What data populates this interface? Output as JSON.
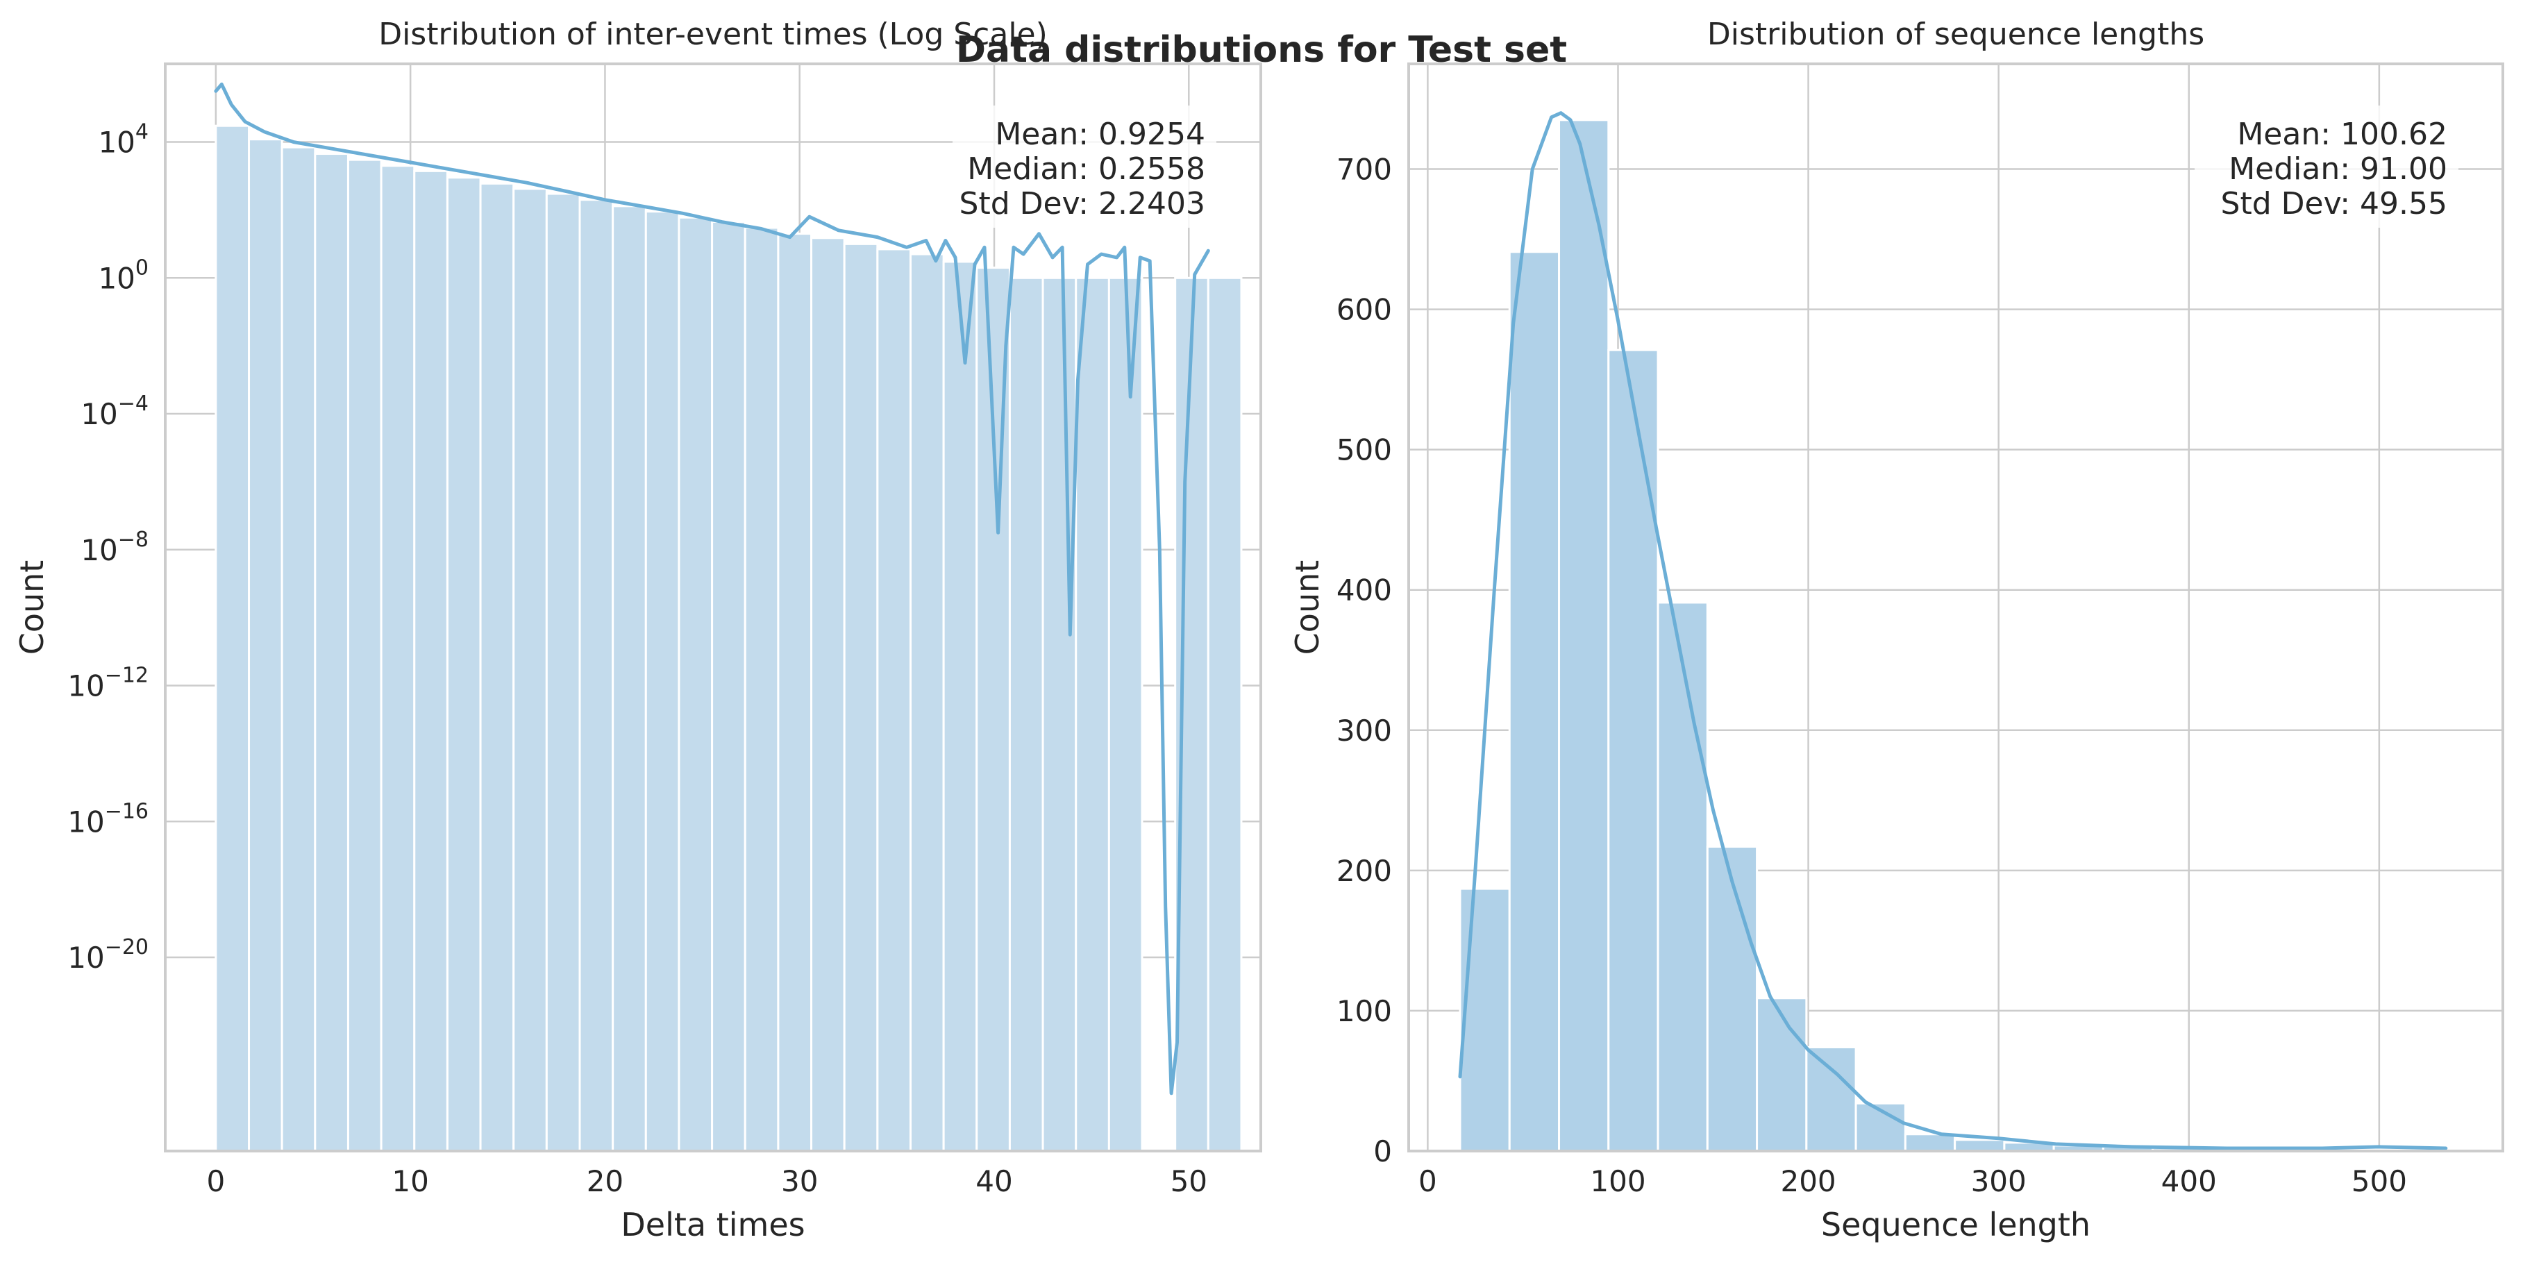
{
  "suptitle": "Data distributions for Test set",
  "colors": {
    "bar_left": "#c3dbec",
    "bar_right": "#b0d1e8",
    "kde": "#6baed6",
    "grid": "#cccccc",
    "axes_edge": "#cccccc",
    "background": "#ffffff"
  },
  "chart_data": [
    {
      "type": "bar",
      "title": "Distribution of inter-event times (Log Scale)",
      "xlabel": "Delta times",
      "ylabel": "Count",
      "yscale": "log",
      "xlim": [
        -2.6,
        53.7
      ],
      "ylim_log10": [
        -25.7,
        6.3
      ],
      "xticks": [
        0,
        10,
        20,
        30,
        40,
        50
      ],
      "xtick_labels": [
        "0",
        "10",
        "20",
        "30",
        "40",
        "50"
      ],
      "yticks_log10": [
        -20,
        -16,
        -12,
        -8,
        -4,
        0,
        4
      ],
      "ytick_labels": [
        {
          "base": "10",
          "exp": "−20"
        },
        {
          "base": "10",
          "exp": "−16"
        },
        {
          "base": "10",
          "exp": "−12"
        },
        {
          "base": "10",
          "exp": "−8"
        },
        {
          "base": "10",
          "exp": "−4"
        },
        {
          "base": "10",
          "exp": "0"
        },
        {
          "base": "10",
          "exp": "4"
        }
      ],
      "grid": true,
      "bins": {
        "start": 0,
        "width": 1.7,
        "counts": [
          30000,
          12000,
          7000,
          4500,
          3000,
          2000,
          1400,
          900,
          600,
          420,
          300,
          200,
          130,
          90,
          60,
          45,
          30,
          20,
          15,
          10,
          7,
          5,
          3,
          2,
          1,
          1,
          1,
          1,
          0,
          1,
          1
        ]
      },
      "kde": {
        "x": [
          0,
          0.3,
          0.8,
          1.5,
          2.5,
          4,
          6,
          8,
          10,
          12,
          14,
          16,
          18,
          20,
          22,
          24,
          26,
          28,
          29.5,
          30.5,
          32,
          34,
          35.5,
          36.5,
          37,
          37.5,
          38,
          38.5,
          39,
          39.5,
          40.2,
          40.6,
          41,
          41.5,
          42.3,
          43,
          43.5,
          43.9,
          44.3,
          44.8,
          45.5,
          46.3,
          46.7,
          47,
          47.5,
          48,
          48.5,
          48.8,
          49.1,
          49.4,
          49.8,
          50.3,
          51
        ],
        "y_log10": [
          5.5,
          5.7,
          5.1,
          4.6,
          4.3,
          4.0,
          3.8,
          3.6,
          3.4,
          3.2,
          3.0,
          2.8,
          2.55,
          2.3,
          2.1,
          1.9,
          1.65,
          1.45,
          1.2,
          1.8,
          1.4,
          1.2,
          0.9,
          1.1,
          0.5,
          1.1,
          0.6,
          -2.5,
          0.4,
          0.9,
          -7.5,
          -2.0,
          0.9,
          0.7,
          1.3,
          0.6,
          0.9,
          -10.5,
          -3.0,
          0.4,
          0.7,
          0.6,
          0.9,
          -3.5,
          0.6,
          0.5,
          -8.0,
          -18.5,
          -24.0,
          -22.5,
          -6.0,
          0.1,
          0.8
        ]
      },
      "annotation": [
        "Mean: 0.9254",
        "Median: 0.2558",
        "Std Dev: 2.2403"
      ]
    },
    {
      "type": "bar",
      "title": "Distribution of sequence lengths",
      "xlabel": "Sequence length",
      "ylabel": "Count",
      "xlim": [
        -10,
        565
      ],
      "ylim": [
        0,
        775
      ],
      "xticks": [
        0,
        100,
        200,
        300,
        400,
        500
      ],
      "xtick_labels": [
        "0",
        "100",
        "200",
        "300",
        "400",
        "500"
      ],
      "yticks": [
        0,
        100,
        200,
        300,
        400,
        500,
        600,
        700
      ],
      "ytick_labels": [
        "0",
        "100",
        "200",
        "300",
        "400",
        "500",
        "600",
        "700"
      ],
      "grid": true,
      "bins": {
        "start": 17,
        "width": 26,
        "counts": [
          187,
          641,
          735,
          571,
          391,
          217,
          109,
          74,
          34,
          12,
          8,
          6,
          4,
          3,
          2,
          2,
          1,
          1,
          1,
          1
        ]
      },
      "kde": {
        "x": [
          17,
          25,
          35,
          45,
          55,
          65,
          70,
          75,
          80,
          90,
          100,
          110,
          120,
          130,
          140,
          150,
          160,
          170,
          180,
          190,
          200,
          215,
          230,
          250,
          270,
          300,
          330,
          370,
          420,
          470,
          500,
          535
        ],
        "y": [
          53,
          200,
          400,
          590,
          700,
          737,
          740,
          735,
          718,
          660,
          592,
          518,
          445,
          375,
          305,
          243,
          192,
          148,
          110,
          88,
          72,
          55,
          35,
          20,
          12,
          9,
          5,
          3,
          2,
          2,
          3,
          2
        ]
      },
      "annotation": [
        "Mean: 100.62",
        "Median: 91.00",
        "Std Dev: 49.55"
      ]
    }
  ]
}
